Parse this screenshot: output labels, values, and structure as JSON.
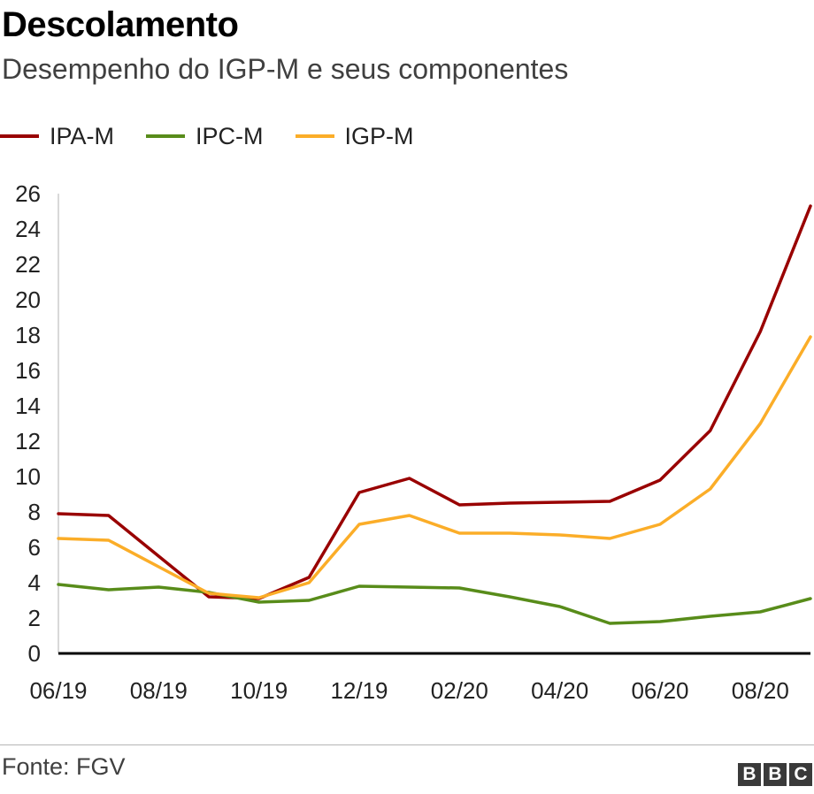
{
  "title": "Descolamento",
  "subtitle": "Desempenho do IGP-M e seus componentes",
  "source": "Fonte: FGV",
  "logo": {
    "letters": [
      "B",
      "B",
      "C"
    ]
  },
  "colors": {
    "ipa": "#990000",
    "ipc": "#588c1a",
    "igp": "#fbad28",
    "axis": "#000000",
    "grid": "#d9d9d9"
  },
  "chart_data": {
    "type": "line",
    "x": [
      "06/19",
      "07/19",
      "08/19",
      "09/19",
      "10/19",
      "11/19",
      "12/19",
      "01/20",
      "02/20",
      "03/20",
      "04/20",
      "05/20",
      "06/20",
      "07/20",
      "08/20",
      "09/20"
    ],
    "x_tick_labels": [
      "06/19",
      "08/19",
      "10/19",
      "12/19",
      "02/20",
      "04/20",
      "06/20",
      "08/20"
    ],
    "y_ticks": [
      0,
      2,
      4,
      6,
      8,
      10,
      12,
      14,
      16,
      18,
      20,
      22,
      24,
      26
    ],
    "ylim": [
      0,
      26
    ],
    "grid": false,
    "legend_position": "top-left",
    "series": [
      {
        "name": "IPA-M",
        "color": "#990000",
        "values": [
          7.9,
          7.8,
          5.5,
          3.2,
          3.1,
          4.3,
          9.1,
          9.9,
          8.4,
          8.5,
          8.55,
          8.6,
          9.8,
          12.6,
          18.2,
          25.3
        ]
      },
      {
        "name": "IPC-M",
        "color": "#588c1a",
        "values": [
          3.9,
          3.6,
          3.75,
          3.45,
          2.9,
          3.0,
          3.8,
          3.75,
          3.7,
          3.2,
          2.65,
          1.7,
          1.8,
          2.1,
          2.35,
          3.1
        ]
      },
      {
        "name": "IGP-M",
        "color": "#fbad28",
        "values": [
          6.5,
          6.4,
          4.9,
          3.4,
          3.15,
          4.0,
          7.3,
          7.8,
          6.8,
          6.8,
          6.7,
          6.5,
          7.3,
          9.3,
          13.0,
          17.9
        ]
      }
    ]
  }
}
